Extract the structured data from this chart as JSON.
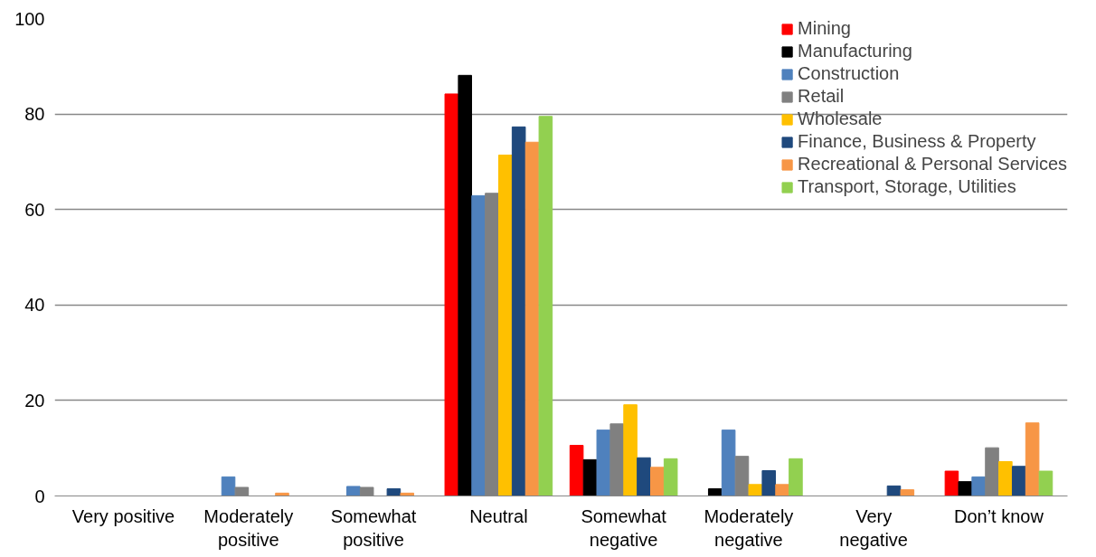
{
  "chart_data": {
    "type": "bar",
    "categories": [
      "Very positive",
      "Moderately\npositive",
      "Somewhat\npositive",
      "Neutral",
      "Somewhat\nnegative",
      "Moderately\nnegative",
      "Very\nnegative",
      "Don’t know"
    ],
    "series": [
      {
        "name": "Mining",
        "color": "#ff0000",
        "values": [
          0,
          0,
          0,
          84.2,
          10.6,
          0,
          0,
          5.2
        ]
      },
      {
        "name": "Manufacturing",
        "color": "#000000",
        "values": [
          0,
          0,
          0,
          88.1,
          7.6,
          1.5,
          0,
          3.0
        ]
      },
      {
        "name": "Construction",
        "color": "#4f81bd",
        "values": [
          0,
          4.0,
          2.0,
          62.9,
          13.8,
          13.8,
          0,
          4.0
        ]
      },
      {
        "name": "Retail",
        "color": "#808080",
        "values": [
          0,
          1.8,
          1.8,
          63.4,
          15.1,
          8.3,
          0,
          10.1
        ]
      },
      {
        "name": "Wholesale",
        "color": "#ffc000",
        "values": [
          0,
          0,
          0,
          71.4,
          19.1,
          2.4,
          0,
          7.2
        ]
      },
      {
        "name": "Finance, Business & Property",
        "color": "#1f497d",
        "values": [
          0,
          0,
          1.5,
          77.3,
          8.0,
          5.3,
          2.1,
          6.2
        ]
      },
      {
        "name": "Recreational & Personal Services",
        "color": "#f79646",
        "values": [
          0,
          0.6,
          0.6,
          74.1,
          6.0,
          2.4,
          1.3,
          15.3
        ]
      },
      {
        "name": "Transport, Storage, Utilities",
        "color": "#92d050",
        "values": [
          0,
          0,
          0,
          79.5,
          7.8,
          7.8,
          0,
          5.2
        ]
      }
    ],
    "ylim": [
      0,
      100
    ],
    "yticks": [
      0,
      20,
      40,
      60,
      80,
      100
    ],
    "grid": "y",
    "legend": "top right"
  }
}
